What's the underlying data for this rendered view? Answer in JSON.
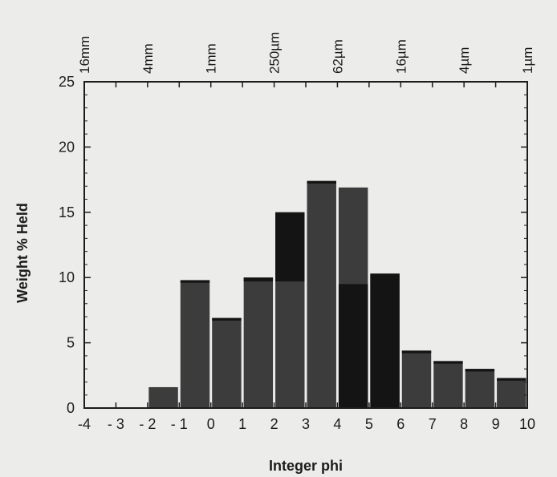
{
  "chart_data": {
    "type": "bar",
    "title": "",
    "xlabel": "Integer phi",
    "ylabel": "Weight % Held",
    "xlim": [
      -4,
      10
    ],
    "ylim": [
      0,
      25
    ],
    "x_ticks": [
      -4,
      -3,
      -2,
      -1,
      0,
      1,
      2,
      3,
      4,
      5,
      6,
      7,
      8,
      9,
      10
    ],
    "x_tick_labels": [
      "-4",
      "- 3",
      "- 2",
      "- 1",
      "0",
      "1",
      "2",
      "3",
      "4",
      "5",
      "6",
      "7",
      "8",
      "9",
      "10"
    ],
    "y_ticks": [
      0,
      5,
      10,
      15,
      20,
      25
    ],
    "top_axis": {
      "positions": [
        -4,
        -2,
        0,
        2,
        4,
        6,
        8,
        10
      ],
      "labels": [
        "16mm",
        "4mm",
        "1mm",
        "250µm",
        "62µm",
        "16µm",
        "4µm",
        "1µm"
      ]
    },
    "grid": false,
    "legend": "none",
    "bars": [
      {
        "x0": -2,
        "x1": -1,
        "value": 1.6,
        "dark_lower": 0,
        "dark_upper": 0
      },
      {
        "x0": -1,
        "x1": 0,
        "value": 9.8,
        "dark_lower": 9.6,
        "dark_upper": 9.8
      },
      {
        "x0": 0,
        "x1": 1,
        "value": 6.9,
        "dark_lower": 6.7,
        "dark_upper": 6.9
      },
      {
        "x0": 1,
        "x1": 2,
        "value": 10.0,
        "dark_lower": 9.7,
        "dark_upper": 10.0
      },
      {
        "x0": 2,
        "x1": 3,
        "value": 15.0,
        "dark_lower": 9.7,
        "dark_upper": 15.0
      },
      {
        "x0": 3,
        "x1": 4,
        "value": 17.4,
        "dark_lower": 17.2,
        "dark_upper": 17.4
      },
      {
        "x0": 4,
        "x1": 5,
        "value": 16.9,
        "dark_lower": 0,
        "dark_upper": 9.5
      },
      {
        "x0": 5,
        "x1": 6,
        "value": 10.3,
        "dark_lower": 0,
        "dark_upper": 10.3
      },
      {
        "x0": 6,
        "x1": 7,
        "value": 4.4,
        "dark_lower": 4.2,
        "dark_upper": 4.4
      },
      {
        "x0": 7,
        "x1": 8,
        "value": 3.6,
        "dark_lower": 3.4,
        "dark_upper": 3.6
      },
      {
        "x0": 8,
        "x1": 9,
        "value": 3.0,
        "dark_lower": 2.8,
        "dark_upper": 3.0
      },
      {
        "x0": 9,
        "x1": 10,
        "value": 2.3,
        "dark_lower": 2.1,
        "dark_upper": 2.3
      }
    ],
    "colors": {
      "bar": "#3c3c3c",
      "bar_dark": "#141414",
      "axis": "#1c1c1c",
      "background": "#ececea"
    }
  }
}
